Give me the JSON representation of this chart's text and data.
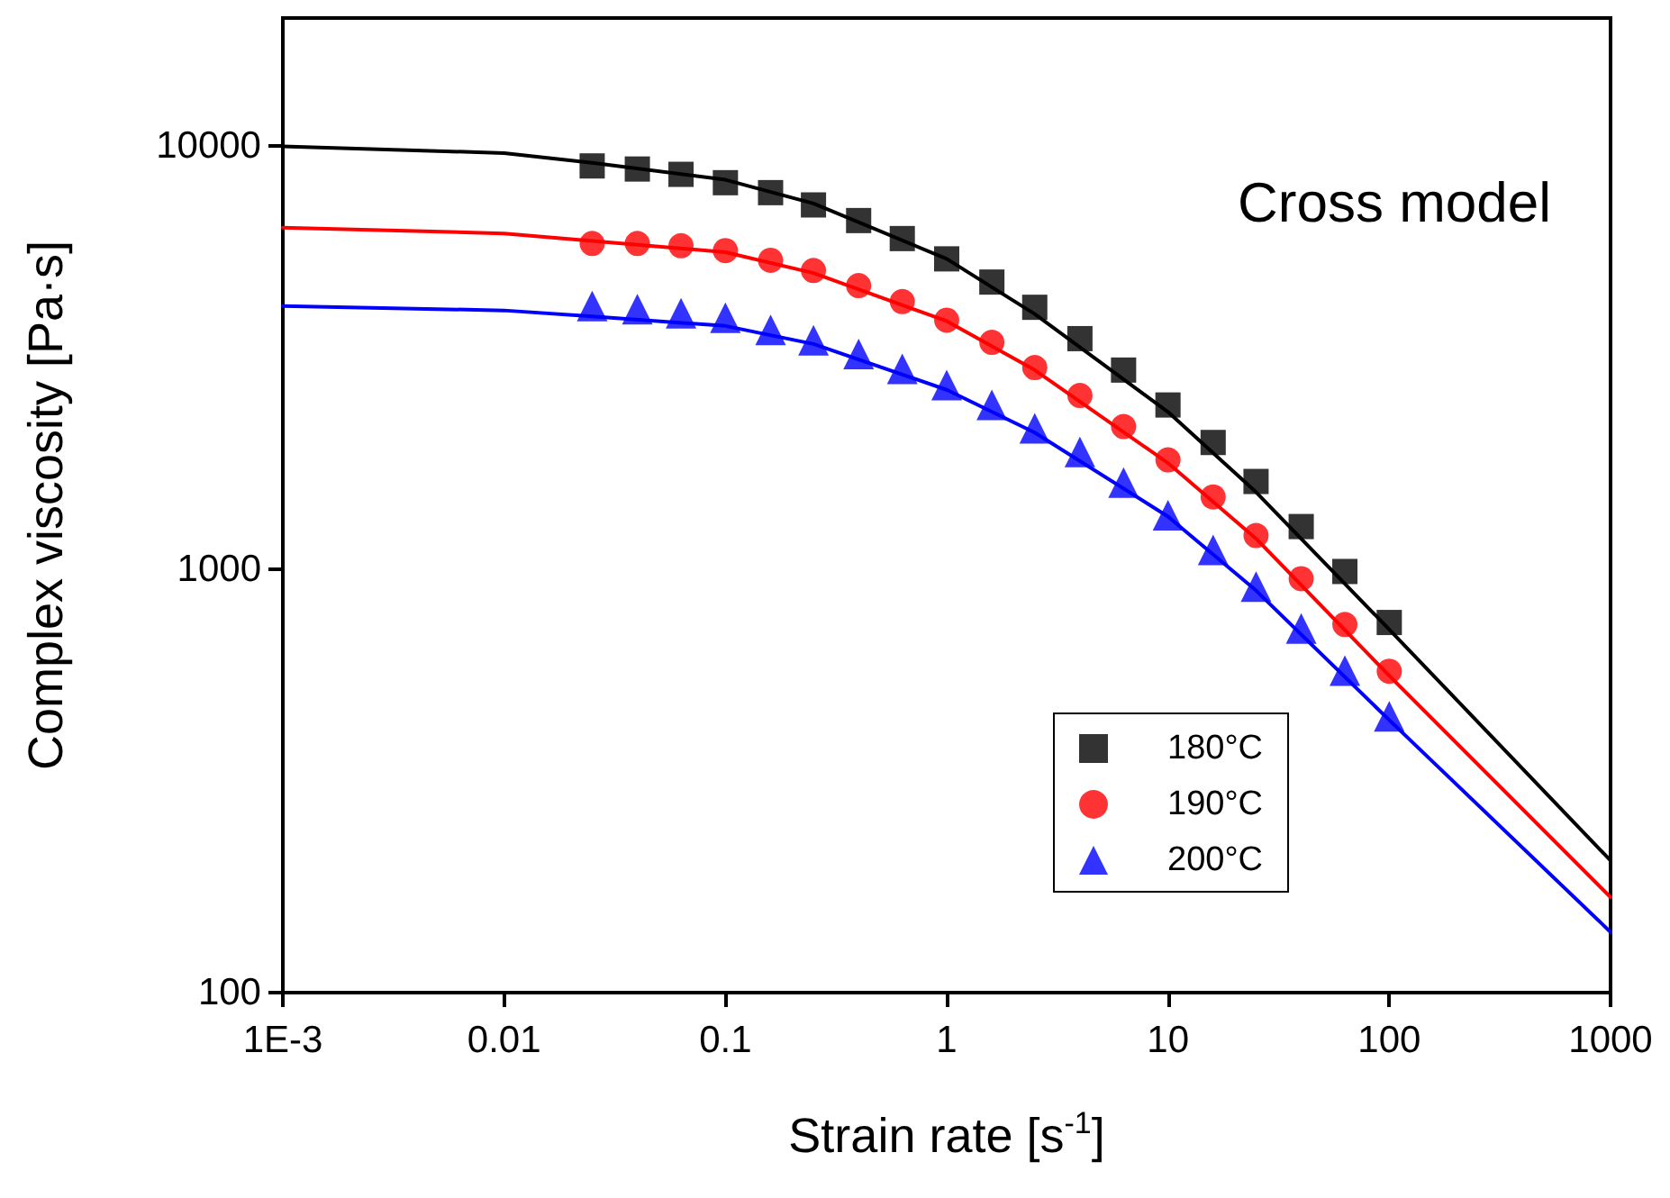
{
  "chart_data": {
    "type": "scatter",
    "xlabel": "Strain rate [s$^{-1}$]",
    "ylabel": "Complex viscosity [Pa·s]",
    "annotations": [
      "Cross model"
    ],
    "log": "xy",
    "grid": false,
    "legend": "bottom right",
    "xlim": [
      0.001,
      1000
    ],
    "xticks": [
      {
        "value": 0.001,
        "label": "1E-3"
      },
      0.01,
      0.1,
      1,
      10,
      100,
      1000
    ],
    "ylim": [
      100,
      20000
    ],
    "yticks": [
      100,
      1000,
      10000
    ],
    "series": [
      {
        "name": "180°C",
        "marker": "square",
        "color": "#000000",
        "x": [
          0.025,
          0.04,
          0.063,
          0.1,
          0.16,
          0.25,
          0.4,
          0.63,
          1,
          1.6,
          2.5,
          4,
          6.3,
          10,
          16,
          25,
          40,
          63,
          100
        ],
        "values": [
          8950,
          8800,
          8550,
          8170,
          7740,
          7240,
          6650,
          6030,
          5400,
          4760,
          4150,
          3500,
          2950,
          2440,
          1990,
          1610,
          1260,
          987,
          748
        ]
      },
      {
        "name": "190°C",
        "marker": "circle",
        "color": "#ff0000",
        "x": [
          0.025,
          0.04,
          0.063,
          0.1,
          0.16,
          0.25,
          0.4,
          0.63,
          1,
          1.6,
          2.5,
          4,
          6.3,
          10,
          16,
          25,
          40,
          63,
          100
        ],
        "values": [
          5870,
          5870,
          5800,
          5650,
          5360,
          5070,
          4670,
          4280,
          3870,
          3430,
          2990,
          2570,
          2170,
          1810,
          1480,
          1200,
          949,
          740,
          574
        ]
      },
      {
        "name": "200°C",
        "marker": "triangle",
        "color": "#0000ff",
        "x": [
          0.025,
          0.04,
          0.063,
          0.1,
          0.16,
          0.25,
          0.4,
          0.63,
          1,
          1.6,
          2.5,
          4,
          6.3,
          10,
          16,
          25,
          40,
          63,
          100
        ],
        "values": [
          4180,
          4110,
          4020,
          3920,
          3670,
          3470,
          3220,
          2970,
          2720,
          2440,
          2150,
          1890,
          1600,
          1340,
          1110,
          909,
          724,
          576,
          449
        ]
      },
      {
        "type": "line",
        "marker": "none",
        "color": "#000000",
        "x": [
          0.001,
          0.01,
          0.025,
          0.1,
          0.25,
          1,
          2.5,
          10,
          25,
          100,
          1000
        ],
        "values": [
          9950,
          9600,
          9100,
          8300,
          7300,
          5400,
          4000,
          2350,
          1520,
          720,
          205
        ]
      },
      {
        "type": "line",
        "marker": "none",
        "color": "#ff0000",
        "x": [
          0.001,
          0.01,
          0.025,
          0.1,
          0.25,
          1,
          2.5,
          10,
          25,
          100,
          1000
        ],
        "values": [
          6400,
          6200,
          5950,
          5600,
          5000,
          3850,
          2950,
          1780,
          1180,
          560,
          168
        ]
      },
      {
        "type": "line",
        "marker": "none",
        "color": "#0000ff",
        "x": [
          0.001,
          0.01,
          0.025,
          0.1,
          0.25,
          1,
          2.5,
          10,
          25,
          100,
          1000
        ],
        "values": [
          4180,
          4080,
          3950,
          3750,
          3400,
          2650,
          2100,
          1330,
          890,
          440,
          139
        ]
      }
    ]
  }
}
